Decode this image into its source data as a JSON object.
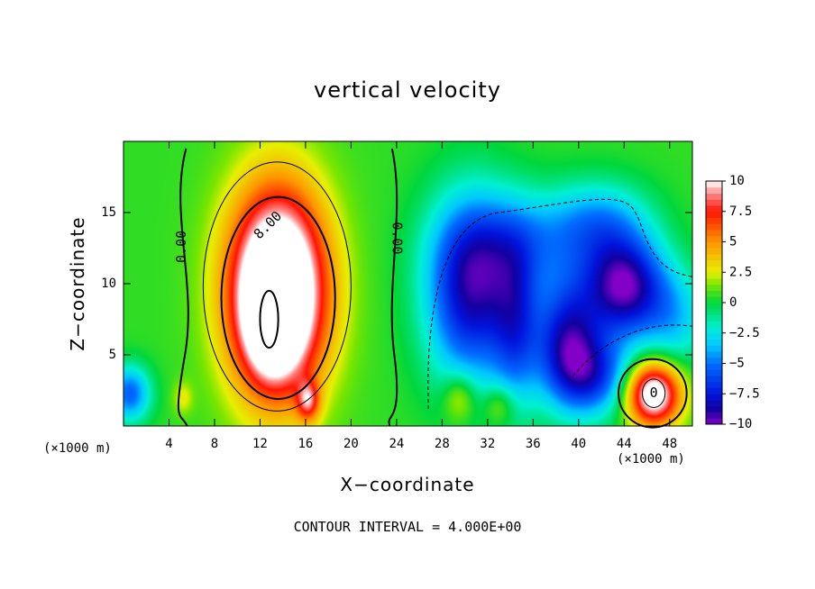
{
  "chart_data": {
    "type": "heatmap",
    "title": "vertical velocity",
    "xlabel": "X−coordinate",
    "ylabel": "Z−coordinate",
    "x_unit": "(×1000 m)",
    "footer": "CONTOUR INTERVAL = 4.000E+00",
    "xlim": [
      0,
      50
    ],
    "ylim": [
      0,
      20
    ],
    "x_ticks": [
      4,
      8,
      12,
      16,
      20,
      24,
      28,
      32,
      36,
      40,
      44,
      48
    ],
    "y_ticks": [
      5,
      10,
      15
    ],
    "colorbar": {
      "range": [
        -10,
        10
      ],
      "tick_values": [
        10,
        7.5,
        5,
        2.5,
        0,
        -2.5,
        -5,
        -7.5,
        -10
      ],
      "tick_labels": [
        "10",
        "7.5",
        "5",
        "2.5",
        "0",
        "−2.5",
        "−5",
        "−7.5",
        "−10"
      ]
    },
    "contour_labels": [
      {
        "text": "0.00",
        "x": 5.1,
        "y": 12.6,
        "angle": -90
      },
      {
        "text": "8.00",
        "x": 12.7,
        "y": 14.1,
        "angle": -45
      },
      {
        "text": "0.00",
        "x": 24.0,
        "y": 13.2,
        "angle": 90
      },
      {
        "text": "0",
        "x": 46.6,
        "y": 2.3,
        "angle": 0
      }
    ],
    "features": [
      {
        "x": 13.5,
        "z": 9.5,
        "sx": 3.0,
        "sz": 5.0,
        "amp": 16
      },
      {
        "x": 13.0,
        "z": 7.5,
        "sx": 1.5,
        "sz": 2.5,
        "amp": 6
      },
      {
        "x": 16.2,
        "z": 1.8,
        "sx": 0.7,
        "sz": 1.0,
        "amp": 6
      },
      {
        "x": 46.5,
        "z": 2.3,
        "sx": 1.7,
        "sz": 1.6,
        "amp": 12
      },
      {
        "x": 30.5,
        "z": 9.5,
        "sx": 2.8,
        "sz": 4.5,
        "amp": -9
      },
      {
        "x": 34.5,
        "z": 7.0,
        "sx": 1.5,
        "sz": 4.0,
        "amp": -5
      },
      {
        "x": 39.0,
        "z": 6.0,
        "sx": 2.0,
        "sz": 3.0,
        "amp": -8
      },
      {
        "x": 44.0,
        "z": 9.8,
        "sx": 2.5,
        "sz": 2.5,
        "amp": -10
      },
      {
        "x": 41.5,
        "z": 3.5,
        "sx": 2.5,
        "sz": 2.0,
        "amp": -6
      },
      {
        "x": 36.0,
        "z": 13.0,
        "sx": 4.5,
        "sz": 2.5,
        "amp": -4
      },
      {
        "x": 42.0,
        "z": 14.5,
        "sx": 3.0,
        "sz": 2.0,
        "amp": -3.5
      },
      {
        "x": 48.5,
        "z": 7.5,
        "sx": 2.0,
        "sz": 2.5,
        "amp": -3.5
      },
      {
        "x": 0.5,
        "z": 2.3,
        "sx": 1.3,
        "sz": 1.4,
        "amp": -6
      },
      {
        "x": 29.5,
        "z": 2.0,
        "sx": 1.0,
        "sz": 1.2,
        "amp": 3
      },
      {
        "x": 33.0,
        "z": 1.5,
        "sx": 1.0,
        "sz": 1.0,
        "amp": 2.5
      },
      {
        "x": 5.2,
        "z": 2.0,
        "sx": 0.6,
        "sz": 0.8,
        "amp": 2
      }
    ],
    "background_value": 0.6,
    "grid": false
  }
}
